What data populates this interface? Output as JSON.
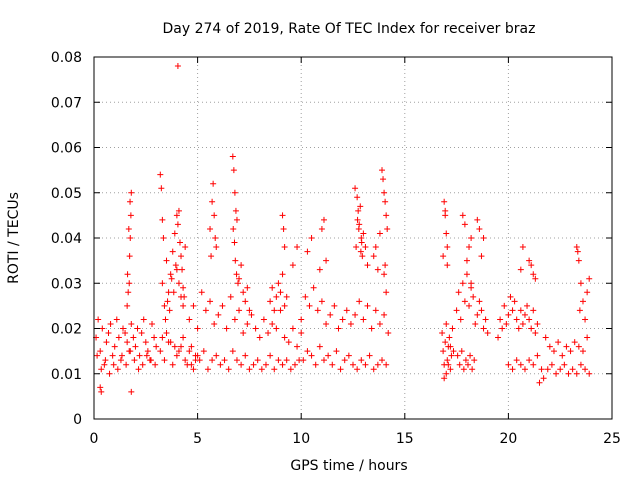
{
  "chart_data": {
    "type": "scatter",
    "title": "Day 274 of 2019, Rate Of TEC Index for receiver braz",
    "xlabel": "GPS time / hours",
    "ylabel": "ROTI / TECUs",
    "xlim": [
      0,
      25
    ],
    "ylim": [
      0,
      0.08
    ],
    "xticks": [
      0,
      5,
      10,
      15,
      20,
      25
    ],
    "xtick_labels": [
      "0",
      "5",
      "10",
      "15",
      "20",
      "25"
    ],
    "yticks": [
      0,
      0.01,
      0.02,
      0.03,
      0.04,
      0.05,
      0.06,
      0.07,
      0.08
    ],
    "ytick_labels": [
      "0",
      "0.01",
      "0.02",
      "0.03",
      "0.04",
      "0.05",
      "0.06",
      "0.07",
      "0.08"
    ],
    "grid": true,
    "marker": "+",
    "color": "#ff0000",
    "series": [
      {
        "name": "ROTI",
        "x": [
          0.1,
          0.2,
          0.3,
          0.4,
          0.5,
          0.6,
          0.7,
          0.8,
          0.9,
          1.0,
          1.1,
          1.2,
          1.3,
          1.4,
          1.5,
          1.6,
          1.7,
          1.8,
          1.9,
          2.0,
          2.1,
          2.2,
          2.3,
          2.4,
          2.5,
          2.6,
          2.7,
          2.8,
          2.9,
          3.0,
          0.15,
          0.35,
          0.55,
          0.75,
          0.95,
          1.15,
          1.35,
          1.55,
          1.75,
          1.95,
          2.15,
          2.35,
          2.55,
          2.75,
          2.95,
          1.6,
          1.65,
          1.7,
          1.72,
          1.75,
          1.78,
          1.8,
          1.62,
          1.68,
          1.74,
          0.3,
          0.35,
          1.8,
          3.2,
          3.25,
          3.3,
          3.35,
          3.3,
          3.4,
          3.5,
          3.6,
          3.7,
          3.8,
          3.9,
          4.0,
          4.05,
          4.1,
          4.15,
          4.2,
          4.25,
          4.3,
          4.35,
          4.4,
          3.45,
          3.55,
          3.65,
          3.75,
          3.85,
          3.95,
          4.0,
          4.1,
          4.2,
          4.3,
          3.2,
          3.4,
          3.6,
          3.8,
          4.0,
          4.2,
          4.4,
          4.6,
          4.8,
          5.0,
          3.3,
          3.5,
          3.7,
          3.9,
          4.1,
          4.3,
          4.5,
          4.7,
          4.9,
          4.05,
          4.6,
          4.8,
          5.0,
          5.2,
          5.4,
          5.6,
          5.8,
          6.0,
          6.2,
          6.4,
          6.6,
          6.8,
          7.0,
          7.2,
          7.4,
          7.6,
          7.8,
          8.0,
          8.2,
          8.4,
          8.6,
          8.8,
          9.0,
          9.2,
          9.4,
          9.6,
          9.8,
          10.0,
          4.7,
          4.9,
          5.1,
          5.3,
          5.5,
          5.7,
          5.9,
          6.1,
          6.3,
          6.5,
          6.7,
          6.9,
          7.1,
          7.3,
          7.5,
          7.7,
          7.9,
          8.1,
          8.3,
          8.5,
          8.7,
          8.9,
          9.1,
          9.3,
          9.5,
          9.7,
          9.9,
          5.6,
          5.7,
          5.75,
          5.8,
          5.85,
          5.65,
          5.9,
          6.7,
          6.75,
          6.8,
          6.85,
          6.9,
          6.72,
          6.78,
          6.82,
          6.88,
          6.95,
          7.0,
          7.1,
          7.2,
          7.3,
          7.4,
          7.5,
          8.5,
          8.6,
          8.7,
          8.8,
          8.9,
          9.0,
          9.1,
          9.2,
          9.3,
          9.1,
          9.15,
          9.2,
          10.0,
          10.2,
          10.4,
          10.6,
          10.8,
          11.0,
          11.2,
          11.4,
          11.6,
          11.8,
          12.0,
          12.2,
          12.4,
          12.6,
          12.8,
          13.0,
          13.2,
          13.4,
          13.6,
          13.8,
          14.0,
          14.2,
          10.1,
          10.3,
          10.5,
          10.7,
          10.9,
          11.1,
          11.3,
          11.5,
          11.7,
          11.9,
          12.1,
          12.3,
          12.5,
          12.7,
          12.9,
          13.1,
          13.3,
          13.5,
          13.7,
          13.9,
          14.1,
          9.6,
          9.8,
          10.3,
          10.5,
          10.9,
          11.0,
          11.1,
          11.2,
          12.6,
          12.7,
          12.75,
          12.8,
          12.85,
          12.9,
          12.95,
          13.0,
          13.1,
          13.2,
          12.65,
          12.72,
          12.78,
          12.88,
          12.92,
          13.5,
          13.6,
          13.7,
          13.8,
          13.9,
          13.95,
          14.0,
          14.05,
          14.1,
          14.15,
          14.0,
          14.05,
          14.1,
          16.8,
          16.85,
          16.9,
          16.95,
          17.0,
          17.05,
          17.1,
          17.15,
          17.2,
          17.25,
          17.3,
          17.35,
          16.9,
          17.0,
          17.1,
          17.2,
          16.9,
          16.95,
          17.0,
          17.05,
          16.85,
          16.95,
          17.05,
          17.5,
          17.6,
          17.7,
          17.8,
          17.9,
          18.0,
          18.1,
          18.2,
          18.3,
          18.4,
          18.5,
          18.6,
          18.7,
          18.8,
          18.9,
          19.0,
          17.55,
          17.65,
          17.75,
          17.85,
          17.95,
          18.05,
          18.15,
          18.25,
          18.35,
          18.0,
          18.1,
          18.2,
          18.5,
          18.6,
          18.7,
          18.8,
          17.8,
          17.9,
          18.2,
          19.5,
          19.6,
          19.7,
          19.8,
          19.9,
          20.0,
          20.1,
          20.2,
          20.3,
          20.4,
          20.5,
          20.6,
          20.7,
          20.8,
          20.9,
          21.0,
          21.1,
          21.2,
          21.3,
          21.4,
          20.0,
          20.2,
          20.4,
          20.6,
          20.8,
          21.0,
          21.2,
          21.4,
          21.6,
          21.0,
          21.1,
          21.2,
          21.3,
          20.6,
          20.7,
          21.8,
          22.0,
          22.2,
          22.4,
          22.6,
          22.8,
          23.0,
          23.2,
          23.4,
          23.6,
          23.8,
          21.9,
          22.1,
          22.3,
          22.5,
          22.7,
          22.9,
          23.1,
          23.3,
          23.5,
          23.7,
          23.9,
          23.3,
          23.4,
          23.5,
          23.6,
          23.7,
          23.8,
          23.9,
          23.35,
          23.45,
          21.5,
          21.7
        ],
        "y": [
          0.018,
          0.022,
          0.015,
          0.02,
          0.012,
          0.017,
          0.019,
          0.021,
          0.014,
          0.016,
          0.022,
          0.018,
          0.013,
          0.02,
          0.019,
          0.017,
          0.015,
          0.021,
          0.018,
          0.016,
          0.02,
          0.014,
          0.019,
          0.022,
          0.017,
          0.015,
          0.013,
          0.021,
          0.018,
          0.016,
          0.014,
          0.011,
          0.013,
          0.01,
          0.012,
          0.011,
          0.014,
          0.012,
          0.015,
          0.013,
          0.011,
          0.012,
          0.014,
          0.013,
          0.012,
          0.025,
          0.028,
          0.03,
          0.036,
          0.04,
          0.045,
          0.05,
          0.032,
          0.042,
          0.048,
          0.007,
          0.006,
          0.006,
          0.054,
          0.051,
          0.044,
          0.04,
          0.03,
          0.025,
          0.035,
          0.028,
          0.032,
          0.037,
          0.041,
          0.045,
          0.043,
          0.046,
          0.039,
          0.036,
          0.033,
          0.029,
          0.027,
          0.038,
          0.022,
          0.026,
          0.024,
          0.031,
          0.028,
          0.034,
          0.033,
          0.03,
          0.027,
          0.025,
          0.015,
          0.013,
          0.017,
          0.012,
          0.014,
          0.016,
          0.013,
          0.015,
          0.011,
          0.014,
          0.018,
          0.019,
          0.017,
          0.016,
          0.015,
          0.018,
          0.012,
          0.016,
          0.013,
          0.078,
          0.022,
          0.025,
          0.02,
          0.028,
          0.024,
          0.026,
          0.021,
          0.023,
          0.025,
          0.02,
          0.027,
          0.022,
          0.024,
          0.019,
          0.021,
          0.023,
          0.02,
          0.018,
          0.022,
          0.019,
          0.021,
          0.02,
          0.024,
          0.018,
          0.017,
          0.02,
          0.016,
          0.019,
          0.012,
          0.014,
          0.013,
          0.015,
          0.011,
          0.013,
          0.014,
          0.012,
          0.013,
          0.011,
          0.015,
          0.013,
          0.012,
          0.014,
          0.011,
          0.012,
          0.013,
          0.011,
          0.012,
          0.014,
          0.011,
          0.013,
          0.012,
          0.013,
          0.011,
          0.012,
          0.013,
          0.042,
          0.048,
          0.052,
          0.045,
          0.04,
          0.036,
          0.038,
          0.058,
          0.055,
          0.05,
          0.046,
          0.044,
          0.042,
          0.039,
          0.035,
          0.032,
          0.03,
          0.031,
          0.034,
          0.028,
          0.026,
          0.029,
          0.024,
          0.026,
          0.029,
          0.024,
          0.027,
          0.03,
          0.028,
          0.032,
          0.025,
          0.027,
          0.045,
          0.042,
          0.038,
          0.022,
          0.027,
          0.025,
          0.029,
          0.024,
          0.026,
          0.021,
          0.023,
          0.025,
          0.02,
          0.022,
          0.024,
          0.021,
          0.023,
          0.026,
          0.022,
          0.025,
          0.02,
          0.024,
          0.021,
          0.023,
          0.019,
          0.013,
          0.015,
          0.014,
          0.012,
          0.016,
          0.013,
          0.014,
          0.012,
          0.015,
          0.011,
          0.013,
          0.014,
          0.012,
          0.011,
          0.013,
          0.012,
          0.014,
          0.011,
          0.012,
          0.013,
          0.012,
          0.034,
          0.038,
          0.037,
          0.04,
          0.033,
          0.042,
          0.044,
          0.035,
          0.051,
          0.049,
          0.046,
          0.043,
          0.047,
          0.04,
          0.036,
          0.041,
          0.038,
          0.034,
          0.038,
          0.044,
          0.042,
          0.037,
          0.039,
          0.036,
          0.038,
          0.033,
          0.041,
          0.055,
          0.053,
          0.05,
          0.048,
          0.045,
          0.042,
          0.032,
          0.034,
          0.028,
          0.019,
          0.015,
          0.012,
          0.017,
          0.021,
          0.013,
          0.016,
          0.018,
          0.011,
          0.014,
          0.02,
          0.015,
          0.009,
          0.01,
          0.012,
          0.016,
          0.048,
          0.045,
          0.041,
          0.034,
          0.036,
          0.046,
          0.038,
          0.024,
          0.028,
          0.022,
          0.03,
          0.026,
          0.032,
          0.025,
          0.029,
          0.027,
          0.021,
          0.023,
          0.026,
          0.024,
          0.02,
          0.022,
          0.019,
          0.014,
          0.012,
          0.015,
          0.011,
          0.013,
          0.012,
          0.014,
          0.011,
          0.013,
          0.035,
          0.038,
          0.03,
          0.044,
          0.042,
          0.036,
          0.04,
          0.045,
          0.043,
          0.04,
          0.018,
          0.022,
          0.02,
          0.025,
          0.021,
          0.023,
          0.027,
          0.024,
          0.026,
          0.022,
          0.02,
          0.024,
          0.021,
          0.023,
          0.025,
          0.022,
          0.02,
          0.024,
          0.019,
          0.021,
          0.012,
          0.011,
          0.013,
          0.012,
          0.011,
          0.013,
          0.012,
          0.014,
          0.011,
          0.035,
          0.034,
          0.032,
          0.031,
          0.033,
          0.038,
          0.018,
          0.016,
          0.015,
          0.017,
          0.014,
          0.016,
          0.015,
          0.017,
          0.016,
          0.015,
          0.018,
          0.011,
          0.012,
          0.01,
          0.011,
          0.012,
          0.01,
          0.011,
          0.01,
          0.012,
          0.011,
          0.01,
          0.038,
          0.035,
          0.03,
          0.026,
          0.022,
          0.028,
          0.031,
          0.037,
          0.024,
          0.008,
          0.009
        ]
      }
    ]
  }
}
